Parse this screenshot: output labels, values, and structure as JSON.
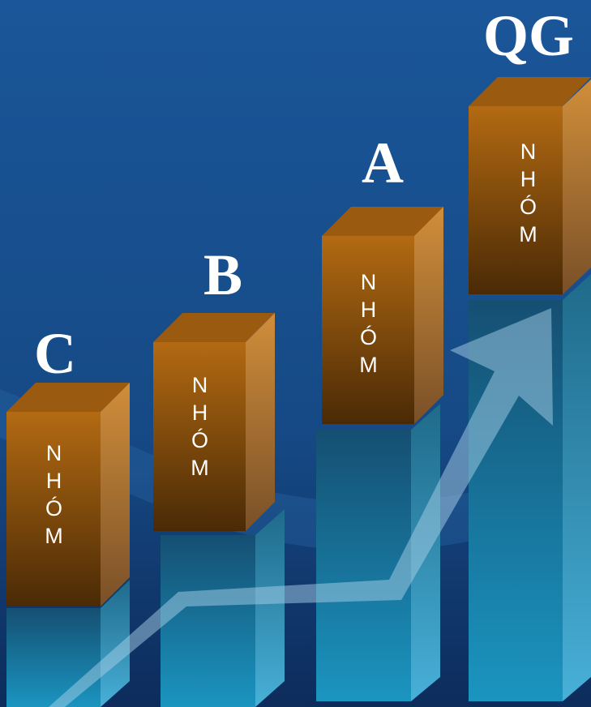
{
  "nodes": [
    {
      "label": "C",
      "text": "NHÓM"
    },
    {
      "label": "B",
      "text": "NHÓM"
    },
    {
      "label": "A",
      "text": "NHÓM"
    },
    {
      "label": "QG",
      "text": "NHÓM"
    }
  ]
}
